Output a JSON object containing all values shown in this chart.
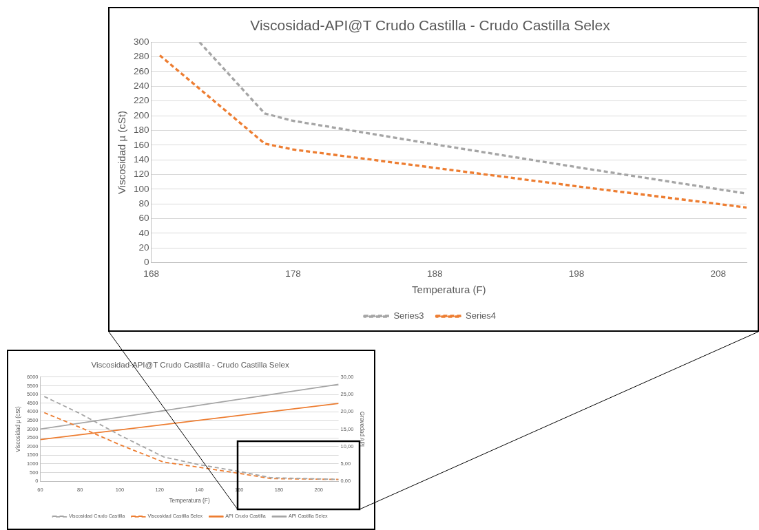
{
  "chart_data": [
    {
      "type": "line",
      "title": "Viscosidad-API@T Crudo Castilla - Crudo Castilla Selex",
      "xlabel": "Temperatura (F)",
      "ylabel": "Viscosidad µ (cSt)",
      "xlim": [
        168,
        210
      ],
      "xticks": [
        168,
        178,
        188,
        198,
        208
      ],
      "ylim": [
        0,
        300
      ],
      "yticks": [
        0,
        20,
        40,
        60,
        80,
        100,
        120,
        140,
        160,
        180,
        200,
        220,
        240,
        260,
        280,
        300
      ],
      "grid": "y",
      "legend": "bottom",
      "marker": "none",
      "series": [
        {
          "name": "Series3",
          "color": "#a5a5a5",
          "line_style": "dashed",
          "x": [
            171.4,
            176,
            178,
            188,
            198,
            210
          ],
          "values": [
            300,
            203,
            193,
            161,
            130,
            94
          ]
        },
        {
          "name": "Series4",
          "color": "#ed7d31",
          "line_style": "dashed",
          "x": [
            168.6,
            176,
            178,
            188,
            198,
            210
          ],
          "values": [
            282,
            162,
            154,
            129,
            104,
            75
          ]
        }
      ]
    },
    {
      "type": "line",
      "title": "Viscosidad-API@T Crudo Castilla - Crudo Castilla Selex",
      "xlabel": "Temperatura (F)",
      "ylabel": "Viscosidad µ (cSt)",
      "y2label": "Gravedad API",
      "xlim": [
        60,
        210
      ],
      "xticks": [
        60,
        80,
        100,
        120,
        140,
        160,
        180,
        200
      ],
      "ylim": [
        0,
        6000
      ],
      "yticks": [
        0,
        500,
        1000,
        1500,
        2000,
        2500,
        3000,
        3500,
        4000,
        4500,
        5000,
        5500,
        6000
      ],
      "y2lim": [
        0,
        30
      ],
      "y2ticks": [
        {
          "value": 0,
          "label": "0,00"
        },
        {
          "value": 5,
          "label": "5,00"
        },
        {
          "value": 10,
          "label": "10,00"
        },
        {
          "value": 15,
          "label": "15,00"
        },
        {
          "value": 20,
          "label": "20,00"
        },
        {
          "value": 25,
          "label": "25,00"
        },
        {
          "value": 30,
          "label": "30,00"
        }
      ],
      "grid": "y",
      "legend": "bottom",
      "marker": "none",
      "series": [
        {
          "name": "Viscosidad Crudo Castilla",
          "color": "#a5a5a5",
          "line_style": "dashed",
          "x": [
            62,
            80,
            100,
            122,
            140,
            160,
            176,
            210
          ],
          "values": [
            4880,
            3900,
            2650,
            1400,
            950,
            560,
            200,
            100
          ]
        },
        {
          "name": "Viscosidad Castilla Selex",
          "color": "#ed7d31",
          "line_style": "dashed",
          "x": [
            62,
            80,
            100,
            122,
            140,
            160,
            176,
            210
          ],
          "values": [
            3950,
            3100,
            2100,
            1100,
            800,
            450,
            150,
            100
          ]
        },
        {
          "name": "API Crudo Castilla",
          "color": "#ed7d31",
          "line_style": "solid",
          "axis": "y2",
          "x": [
            60,
            210
          ],
          "values": [
            12.0,
            22.4
          ]
        },
        {
          "name": "API Castilla Selex",
          "color": "#a5a5a5",
          "line_style": "solid",
          "axis": "y2",
          "x": [
            60,
            210
          ],
          "values": [
            15.0,
            27.9
          ]
        }
      ]
    }
  ]
}
